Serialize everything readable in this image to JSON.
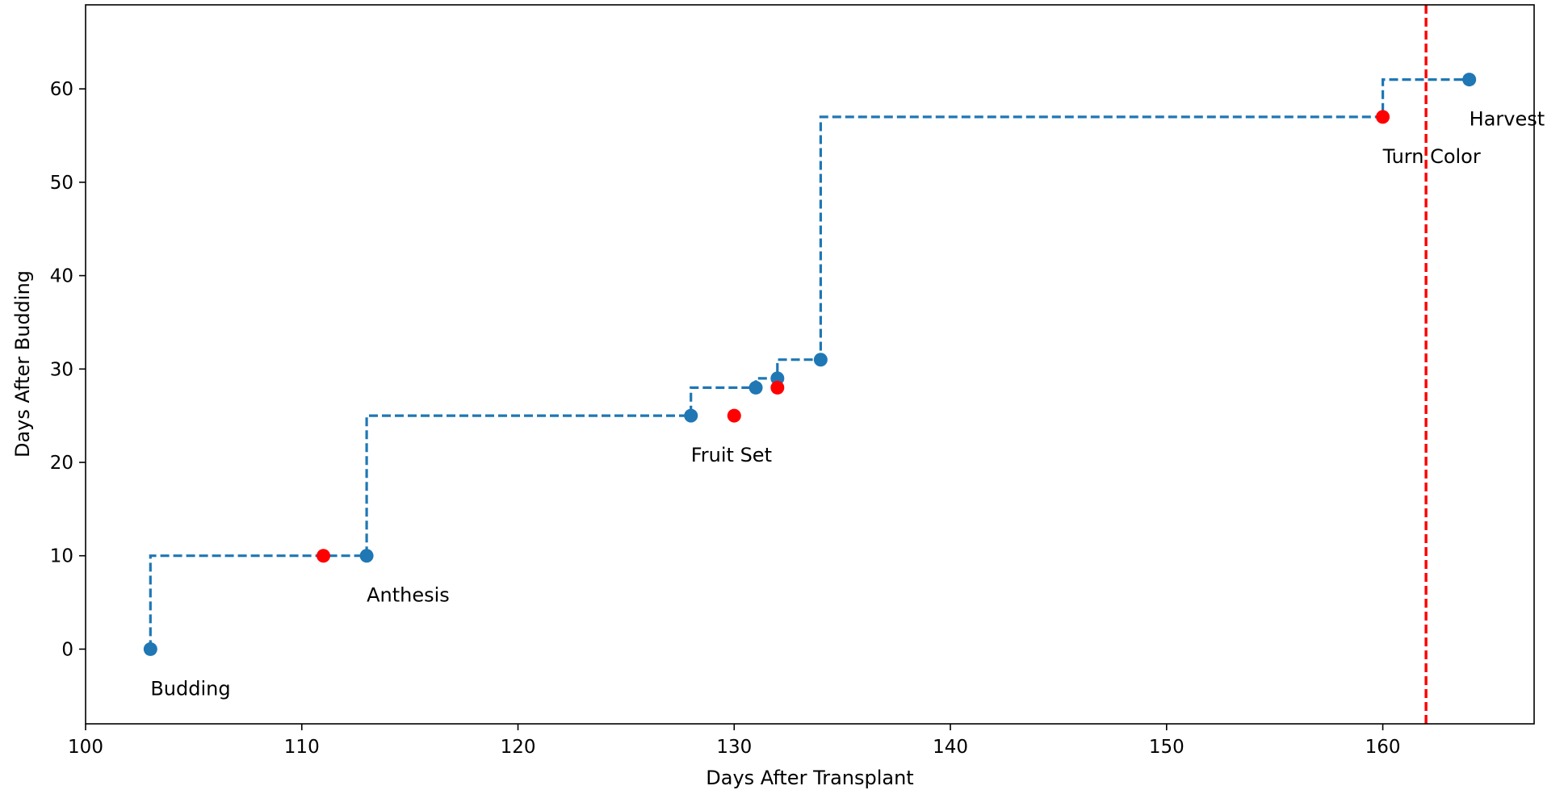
{
  "chart_data": {
    "type": "scatter",
    "title": "",
    "xlabel": "Days After Transplant",
    "ylabel": "Days After Budding",
    "xlim": [
      100,
      167
    ],
    "ylim": [
      -8,
      69
    ],
    "xticks": [
      100,
      110,
      120,
      130,
      140,
      150,
      160
    ],
    "yticks": [
      0,
      10,
      20,
      30,
      40,
      50,
      60
    ],
    "grid": false,
    "legend": "none",
    "series": [
      {
        "style": "step-dashed-with-markers",
        "color": "#1f77b4",
        "points": [
          {
            "x": 103,
            "y": 0
          },
          {
            "x": 113,
            "y": 10
          },
          {
            "x": 128,
            "y": 25
          },
          {
            "x": 131,
            "y": 28
          },
          {
            "x": 132,
            "y": 29
          },
          {
            "x": 134,
            "y": 31
          },
          {
            "x": 164,
            "y": 61
          }
        ],
        "step_path": [
          {
            "x": 103,
            "y": 0
          },
          {
            "x": 103,
            "y": 10
          },
          {
            "x": 113,
            "y": 10
          },
          {
            "x": 113,
            "y": 25
          },
          {
            "x": 128,
            "y": 25
          },
          {
            "x": 128,
            "y": 28
          },
          {
            "x": 131,
            "y": 28
          },
          {
            "x": 131,
            "y": 29
          },
          {
            "x": 132,
            "y": 29
          },
          {
            "x": 132,
            "y": 31
          },
          {
            "x": 134,
            "y": 31
          },
          {
            "x": 134,
            "y": 57
          },
          {
            "x": 160,
            "y": 57
          },
          {
            "x": 160,
            "y": 61
          },
          {
            "x": 164,
            "y": 61
          }
        ]
      },
      {
        "style": "markers",
        "color": "#ff0000",
        "points": [
          {
            "x": 111,
            "y": 10
          },
          {
            "x": 130,
            "y": 25
          },
          {
            "x": 132,
            "y": 28
          },
          {
            "x": 160,
            "y": 57
          }
        ]
      }
    ],
    "vline": {
      "x": 162,
      "color": "#ff0000",
      "style": "dashed"
    },
    "annotations": [
      {
        "text": "Budding",
        "x": 103,
        "y": 0
      },
      {
        "text": "Anthesis",
        "x": 113,
        "y": 10
      },
      {
        "text": "Fruit Set",
        "x": 128,
        "y": 25
      },
      {
        "text": "Turn Color",
        "x": 160,
        "y": 57
      },
      {
        "text": "Harvest",
        "x": 164,
        "y": 61
      }
    ]
  }
}
